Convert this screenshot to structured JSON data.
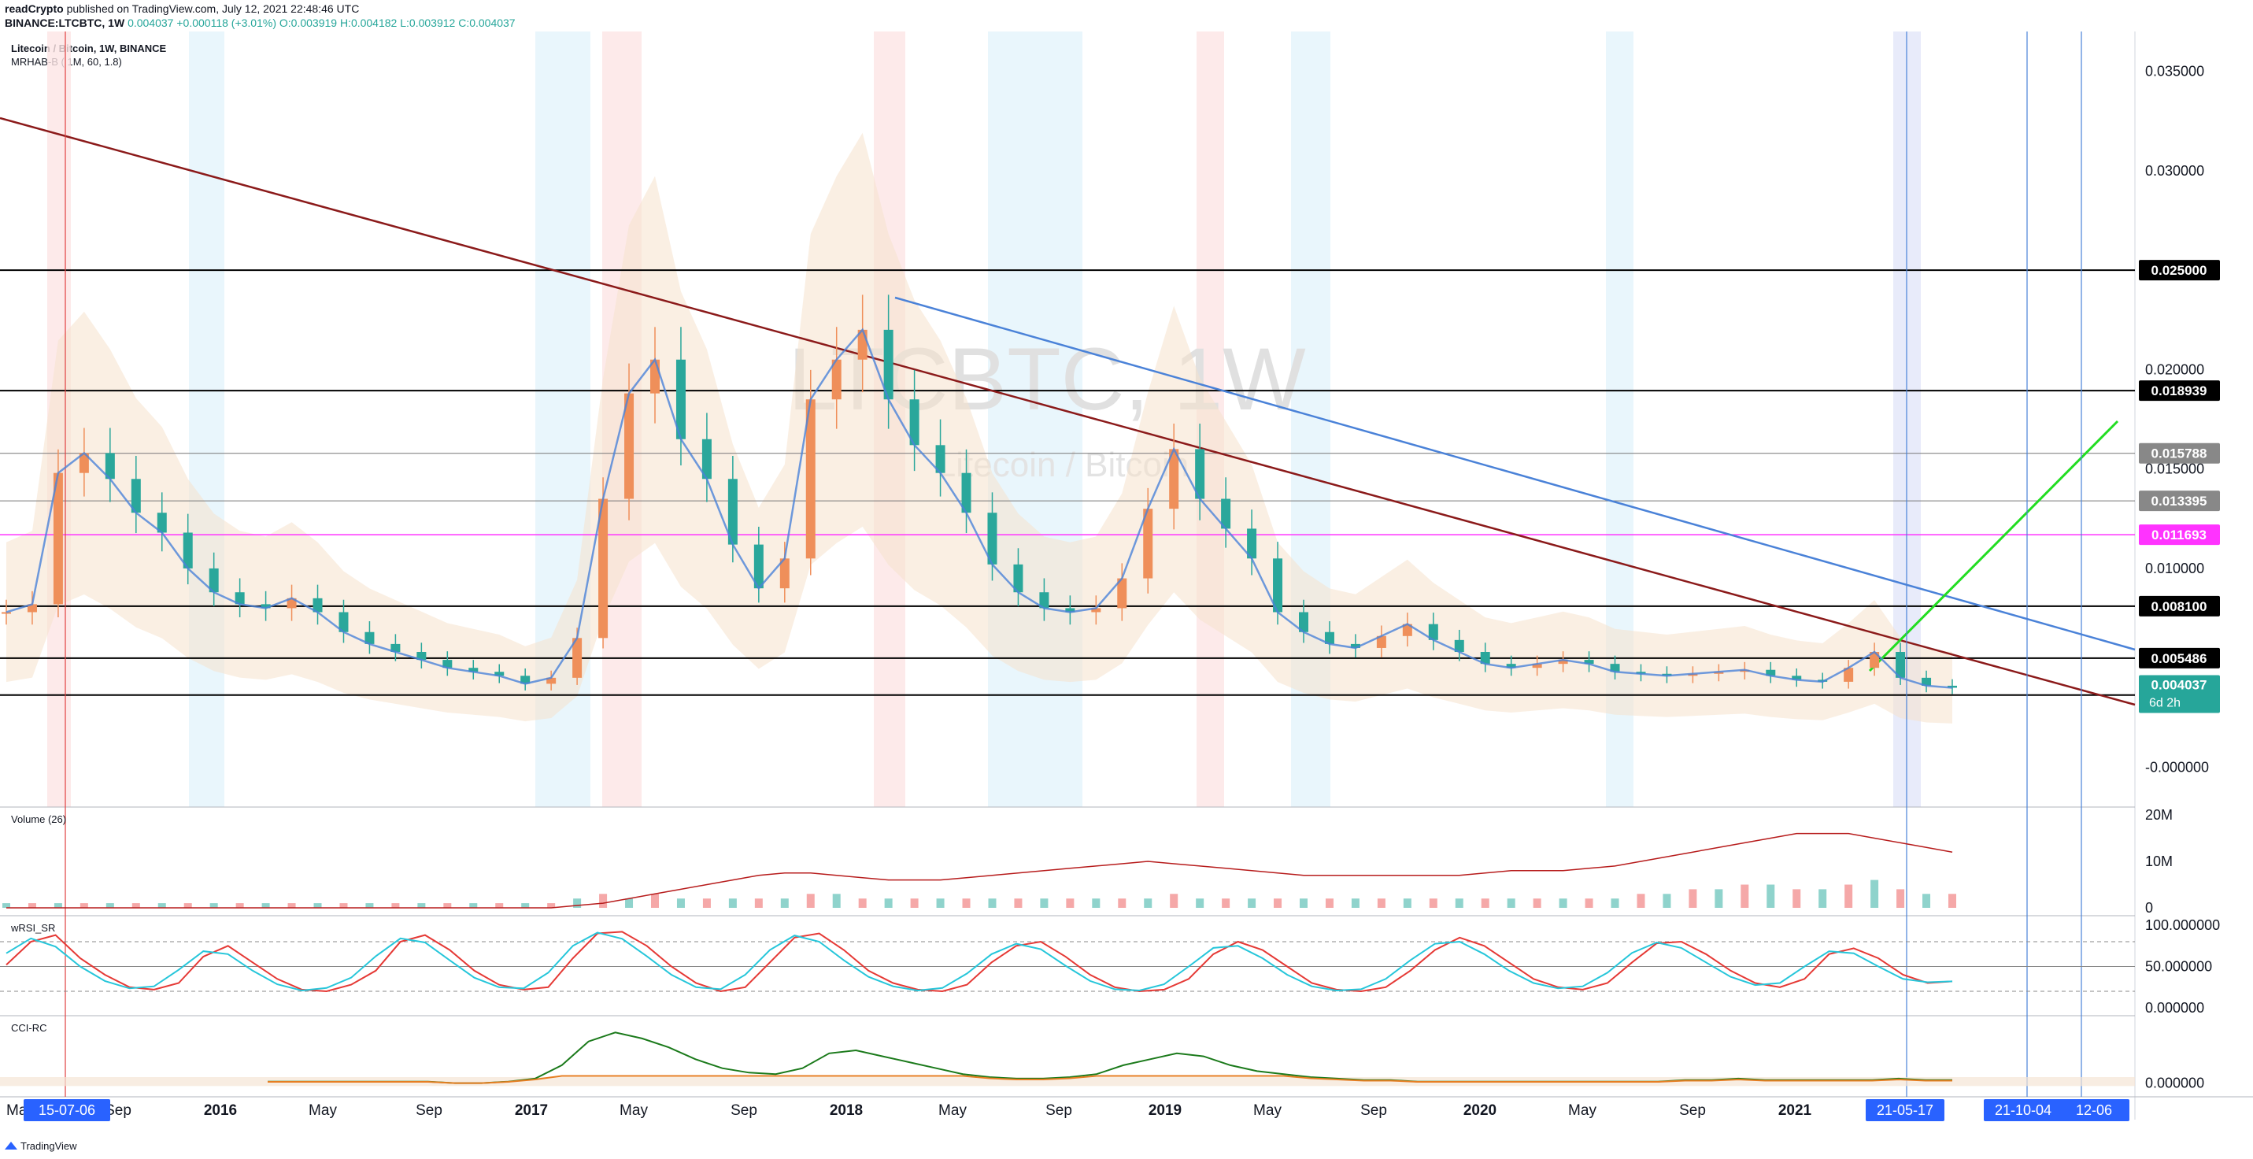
{
  "header": {
    "author": "readCrypto",
    "published_text": "published on TradingView.com, July 12, 2021 22:48:46 UTC",
    "symbol_line": "BINANCE:LTCBTC, 1W",
    "change": "+0.000118 (+3.01%)",
    "open": "O:0.003919",
    "high": "H:0.004182",
    "low": "L:0.003912",
    "close": "C:0.004037",
    "open_value": "0.004037"
  },
  "chart_legend": {
    "title": "Litecoin / Bitcoin, 1W, BINANCE",
    "indicator": "MRHAB-B ( 1M, 60, 1.8)"
  },
  "watermark": {
    "symbol": "LTCBTC, 1W",
    "name": "Litecoin / Bitcoin"
  },
  "colors": {
    "up_candle": "#ef8f5a",
    "down_candle": "#2aa79b",
    "trendline_dark_red": "#8b1a1a",
    "trendline_blue": "#4a82d8",
    "projection_green": "#22dd22",
    "highlight_magenta": "#ff33ff",
    "current_price_teal": "#26a69a"
  },
  "chart_data": [
    {
      "type": "line",
      "title": "",
      "y_scale": "linear",
      "ylim": [
        -0.002,
        0.037
      ],
      "y_ticks": [
        "0.035000",
        "0.030000",
        "0.020000",
        "0.015000",
        "0.010000",
        "-0.000000"
      ],
      "x_ticks": [
        "May",
        "Sep",
        "2016",
        "May",
        "Sep",
        "2017",
        "May",
        "Sep",
        "2018",
        "May",
        "Sep",
        "2019",
        "May",
        "Sep",
        "2020",
        "May",
        "Sep",
        "2021"
      ],
      "highlighted_x_labels": [
        "15-07-06",
        "21-05-17",
        "21-10-04",
        "12-06"
      ],
      "horizontal_levels": [
        "0.025000",
        "0.018939",
        "0.015788",
        "0.013395",
        "0.011693",
        "0.008100",
        "0.005486",
        "0.003633"
      ],
      "current_price": {
        "value": "0.004037",
        "countdown": "6d 2h"
      },
      "series": [
        {
          "values": [
            0.0078,
            0.0082,
            0.0148,
            0.0158,
            0.0145,
            0.0128,
            0.0118,
            0.01,
            0.0088,
            0.0082,
            0.008,
            0.0085,
            0.0078,
            0.0068,
            0.0062,
            0.0058,
            0.0054,
            0.005,
            0.0048,
            0.0046,
            0.0042,
            0.0045,
            0.0065,
            0.0135,
            0.0188,
            0.0205,
            0.0165,
            0.0145,
            0.0112,
            0.009,
            0.0105,
            0.0185,
            0.0205,
            0.022,
            0.0185,
            0.0162,
            0.0148,
            0.0128,
            0.0102,
            0.0088,
            0.008,
            0.0078,
            0.008,
            0.0095,
            0.013,
            0.016,
            0.0135,
            0.012,
            0.0105,
            0.0078,
            0.0068,
            0.0062,
            0.006,
            0.0066,
            0.0072,
            0.0064,
            0.0058,
            0.0052,
            0.005,
            0.0052,
            0.0054,
            0.0052,
            0.0048,
            0.0047,
            0.0046,
            0.0047,
            0.0048,
            0.0049,
            0.0046,
            0.0044,
            0.0043,
            0.005,
            0.0058,
            0.0045,
            0.0041,
            0.004
          ]
        }
      ]
    },
    {
      "type": "bar",
      "title": "Volume (26)",
      "y_ticks": [
        "20M",
        "10M",
        "0"
      ],
      "ylim": [
        0,
        20
      ],
      "values": [
        1,
        1,
        1,
        1,
        1,
        1,
        1,
        1,
        1,
        1,
        1,
        1,
        1,
        1,
        1,
        1,
        1,
        1,
        1,
        1,
        1,
        1,
        2,
        3,
        2,
        3,
        2,
        2,
        2,
        2,
        2,
        3,
        3,
        2,
        2,
        2,
        2,
        2,
        2,
        2,
        2,
        2,
        2,
        2,
        2,
        3,
        2,
        2,
        2,
        2,
        2,
        2,
        2,
        2,
        2,
        2,
        2,
        2,
        2,
        2,
        2,
        2,
        2,
        3,
        3,
        4,
        4,
        5,
        5,
        4,
        4,
        5,
        6,
        4,
        3,
        3
      ],
      "ma": [
        0,
        0,
        0,
        0,
        0,
        0,
        0,
        0,
        0,
        0,
        0,
        0,
        0,
        0,
        0,
        0,
        0,
        0,
        0,
        0,
        0,
        0,
        0.5,
        1,
        2,
        3,
        4,
        5,
        6,
        7,
        7.5,
        7.5,
        7,
        6.5,
        6,
        6,
        6,
        6.5,
        7,
        7.5,
        8,
        8.5,
        9,
        9.5,
        10,
        9.5,
        9,
        8.5,
        8,
        7.5,
        7,
        7,
        7,
        7,
        7,
        7,
        7,
        7.5,
        8,
        8,
        8,
        8.5,
        9,
        10,
        11,
        12,
        13,
        14,
        15,
        16,
        16,
        16,
        15,
        14,
        13,
        12
      ]
    },
    {
      "type": "line",
      "title": "wRSI_SR",
      "y_ticks": [
        "100.000000",
        "50.000000",
        "0.000000"
      ],
      "ylim": [
        0,
        100
      ],
      "values": [
        52,
        80,
        88,
        60,
        40,
        25,
        22,
        30,
        62,
        75,
        55,
        35,
        22,
        20,
        28,
        45,
        80,
        88,
        70,
        45,
        28,
        22,
        25,
        60,
        90,
        92,
        75,
        50,
        30,
        20,
        25,
        55,
        85,
        90,
        70,
        45,
        30,
        22,
        20,
        28,
        55,
        75,
        80,
        62,
        40,
        25,
        20,
        22,
        35,
        65,
        80,
        70,
        50,
        30,
        22,
        20,
        25,
        45,
        70,
        85,
        75,
        55,
        35,
        25,
        22,
        30,
        55,
        78,
        80,
        65,
        45,
        30,
        25,
        35,
        65,
        72,
        60,
        40,
        30,
        32
      ]
    },
    {
      "type": "line",
      "title": "CCI-RC",
      "y_ticks": [
        "0.000000"
      ],
      "ylim": [
        -5,
        40
      ],
      "values": [
        1,
        1,
        1,
        1,
        1,
        1,
        1,
        0,
        0,
        1,
        3,
        12,
        28,
        34,
        30,
        24,
        16,
        10,
        7,
        6,
        10,
        20,
        22,
        18,
        14,
        10,
        6,
        4,
        3,
        3,
        4,
        6,
        12,
        16,
        20,
        18,
        12,
        8,
        6,
        4,
        3,
        2,
        2,
        1,
        1,
        1,
        1,
        1,
        1,
        1,
        1,
        1,
        1,
        2,
        2,
        3,
        2,
        2,
        2,
        2,
        2,
        3,
        2,
        2
      ]
    }
  ],
  "footer": {
    "brand": "TradingView"
  }
}
